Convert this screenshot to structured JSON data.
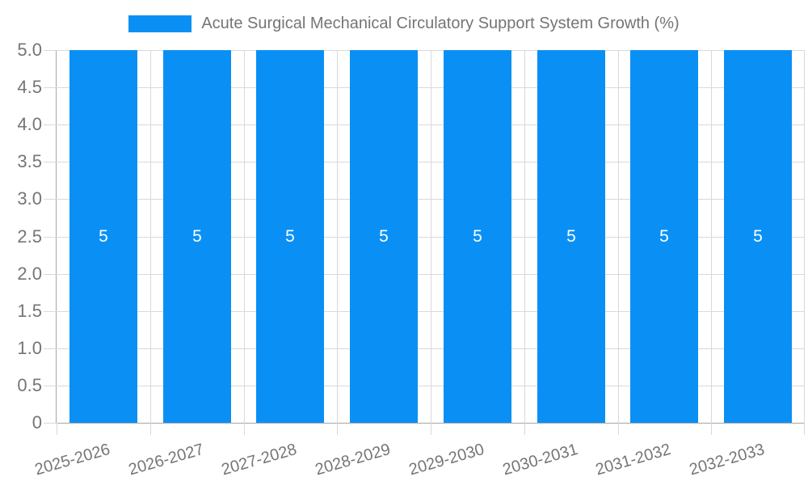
{
  "legend": {
    "items": [
      {
        "label": "Acute Surgical Mechanical Circulatory Support System Growth (%)",
        "color": "#0a90f5"
      }
    ],
    "position": "top"
  },
  "chart_data": {
    "type": "bar",
    "title": "Acute Surgical Mechanical Circulatory Support System Growth (%)",
    "categories": [
      "2025-2026",
      "2026-2027",
      "2027-2028",
      "2028-2029",
      "2029-2030",
      "2030-2031",
      "2031-2032",
      "2032-2033"
    ],
    "series": [
      {
        "name": "Acute Surgical Mechanical Circulatory Support System Growth (%)",
        "values": [
          5,
          5,
          5,
          5,
          5,
          5,
          5,
          5
        ],
        "color": "#0a90f5"
      }
    ],
    "bar_value_labels": [
      "5",
      "5",
      "5",
      "5",
      "5",
      "5",
      "5",
      "5"
    ],
    "xlabel": "",
    "ylabel": "",
    "ylim": [
      0,
      5
    ],
    "yticks": [
      0,
      0.5,
      1,
      1.5,
      2,
      2.5,
      3,
      3.5,
      4,
      4.5,
      5
    ],
    "ytick_labels": [
      "0",
      "0.5",
      "1.0",
      "1.5",
      "2.0",
      "2.5",
      "3.0",
      "3.5",
      "4.0",
      "4.5",
      "5.0"
    ],
    "grid": true,
    "legend_position": "top",
    "x_label_rotation_deg": -16,
    "colors": {
      "bar": "#0a90f5",
      "axis_text": "#757575",
      "gridline": "#d9d9d9",
      "axis_line": "#a6a6a6",
      "value_label": "#ffffff",
      "background": "#ffffff"
    }
  }
}
